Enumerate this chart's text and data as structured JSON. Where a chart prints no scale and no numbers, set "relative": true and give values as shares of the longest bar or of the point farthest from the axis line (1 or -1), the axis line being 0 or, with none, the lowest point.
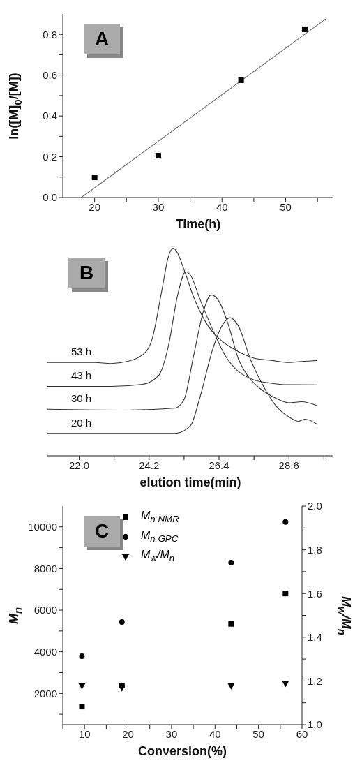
{
  "chart_data": [
    {
      "type": "scatter",
      "title": "A",
      "xlabel": "Time(h)",
      "ylabel": "ln([M]$_{0}$/[M])",
      "xlim": [
        15,
        57.5
      ],
      "xticks": [
        20,
        {
          "value": 25,
          "label": null
        },
        30,
        {
          "value": 35,
          "label": null
        },
        40,
        {
          "value": 45,
          "label": null
        },
        50,
        {
          "value": 55,
          "label": null
        }
      ],
      "ylim": [
        0,
        0.9
      ],
      "yticks": [
        {
          "value": 0,
          "label": "0.0"
        },
        {
          "value": 0.1,
          "label": null
        },
        {
          "value": 0.2,
          "label": "0.2"
        },
        {
          "value": 0.3,
          "label": null
        },
        {
          "value": 0.4,
          "label": "0.4"
        },
        {
          "value": 0.5,
          "label": null
        },
        {
          "value": 0.6,
          "label": "0.6"
        },
        {
          "value": 0.7,
          "label": null
        },
        {
          "value": 0.8,
          "label": "0.8"
        }
      ],
      "series": [
        {
          "color": "#000000",
          "marker": "square",
          "x": [
            20,
            30,
            43,
            53
          ],
          "values": [
            0.099,
            0.205,
            0.575,
            0.825
          ]
        },
        {
          "type": "line",
          "color": "#666666",
          "x": [
            17.9,
            56.4
          ],
          "values": [
            0,
            0.878
          ]
        }
      ]
    },
    {
      "type": "line",
      "title": "B",
      "xlabel": "elution time(min)",
      "relative": true,
      "xlim": [
        21,
        30
      ],
      "xticks": [
        {
          "value": 22,
          "label": "22.0"
        },
        {
          "value": 23.1,
          "label": null
        },
        {
          "value": 24.2,
          "label": "24.2"
        },
        {
          "value": 25.3,
          "label": null
        },
        {
          "value": 26.4,
          "label": "26.4"
        },
        {
          "value": 27.5,
          "label": null
        },
        {
          "value": 28.6,
          "label": "28.6"
        },
        {
          "value": 29.7,
          "label": null
        }
      ],
      "series": [
        {
          "name": "53 h",
          "color": "#333333",
          "x": [
            21,
            22.5,
            23,
            23.5,
            24,
            24.3,
            24.6,
            24.8,
            24.95,
            25.1,
            25.3,
            25.6,
            26,
            26.4,
            27,
            27.5,
            28,
            28.6,
            29,
            29.5
          ],
          "values": [
            0.449,
            0.449,
            0.444,
            0.454,
            0.486,
            0.564,
            0.795,
            0.953,
            1,
            0.973,
            0.895,
            0.764,
            0.638,
            0.564,
            0.502,
            0.47,
            0.46,
            0.449,
            0.454,
            0.458
          ]
        },
        {
          "name": "43 h",
          "color": "#333333",
          "x": [
            21,
            23,
            24,
            24.5,
            24.8,
            25.1,
            25.35,
            25.5,
            25.8,
            26.2,
            26.6,
            27,
            27.5,
            28,
            28.6,
            29.5
          ],
          "values": [
            0.334,
            0.334,
            0.344,
            0.386,
            0.523,
            0.774,
            0.885,
            0.869,
            0.753,
            0.607,
            0.481,
            0.407,
            0.365,
            0.35,
            0.342,
            0.341
          ]
        },
        {
          "name": "30 h",
          "color": "#333333",
          "x": [
            21,
            23.5,
            25,
            25.3,
            25.6,
            25.9,
            26.15,
            26.4,
            26.7,
            27,
            27.3,
            27.7,
            28.2,
            28.6,
            29,
            29.5
          ],
          "values": [
            0.224,
            0.22,
            0.229,
            0.271,
            0.481,
            0.69,
            0.774,
            0.743,
            0.627,
            0.47,
            0.386,
            0.323,
            0.276,
            0.255,
            0.26,
            0.241
          ]
        },
        {
          "name": "20 h",
          "color": "#333333",
          "x": [
            21,
            25,
            25.5,
            25.8,
            26.2,
            26.5,
            26.75,
            27,
            27.4,
            27.8,
            28.2,
            28.6,
            28.9,
            29.1,
            29.25,
            29.5
          ],
          "values": [
            0.108,
            0.108,
            0.145,
            0.281,
            0.512,
            0.627,
            0.664,
            0.627,
            0.46,
            0.334,
            0.239,
            0.187,
            0.166,
            0.176,
            0.171,
            0.15
          ]
        }
      ]
    },
    {
      "type": "scatter",
      "title": "C",
      "xlabel": "Conversion(%)",
      "ylabel": "M$_{n}$",
      "y2label": "M$_{w}$/M$_{n}$",
      "legend": "top",
      "xlim": [
        5,
        60
      ],
      "xticks": [
        {
          "value": 5,
          "label": null
        },
        10,
        {
          "value": 15,
          "label": null
        },
        20,
        {
          "value": 25,
          "label": null
        },
        30,
        {
          "value": 35,
          "label": null
        },
        40,
        {
          "value": 45,
          "label": null
        },
        50,
        {
          "value": 55,
          "label": null
        },
        60
      ],
      "ylim": [
        500,
        11000
      ],
      "yticks": [
        {
          "value": 1000,
          "label": null
        },
        2000,
        {
          "value": 3000,
          "label": null
        },
        4000,
        {
          "value": 5000,
          "label": null
        },
        6000,
        {
          "value": 7000,
          "label": null
        },
        8000,
        {
          "value": 9000,
          "label": null
        },
        10000
      ],
      "y2lim": [
        1,
        2
      ],
      "y2ticks": [
        {
          "value": 1,
          "label": "1.0"
        },
        {
          "value": 1.1,
          "label": null
        },
        1.2,
        {
          "value": 1.3,
          "label": null
        },
        1.4,
        {
          "value": 1.5,
          "label": null
        },
        1.6,
        {
          "value": 1.7,
          "label": null
        },
        1.8,
        {
          "value": 1.9,
          "label": null
        },
        {
          "value": 2,
          "label": "2.0"
        }
      ],
      "x": [
        9.4,
        18.6,
        43.7,
        56.2
      ],
      "series": [
        {
          "name": "M$_{n NMR}$",
          "color": "#000000",
          "marker": "square",
          "values": [
            1370,
            2380,
            5340,
            6800
          ]
        },
        {
          "name": "M$_{n GPC}$",
          "color": "#000000",
          "marker": "circle",
          "values": [
            3790,
            5430,
            8280,
            10240
          ]
        },
        {
          "name": "M$_{w}$/M$_{n}$",
          "color": "#000000",
          "marker": "triangle-down",
          "axis": "y2",
          "values": [
            1.18,
            1.17,
            1.18,
            1.19
          ]
        }
      ]
    }
  ]
}
